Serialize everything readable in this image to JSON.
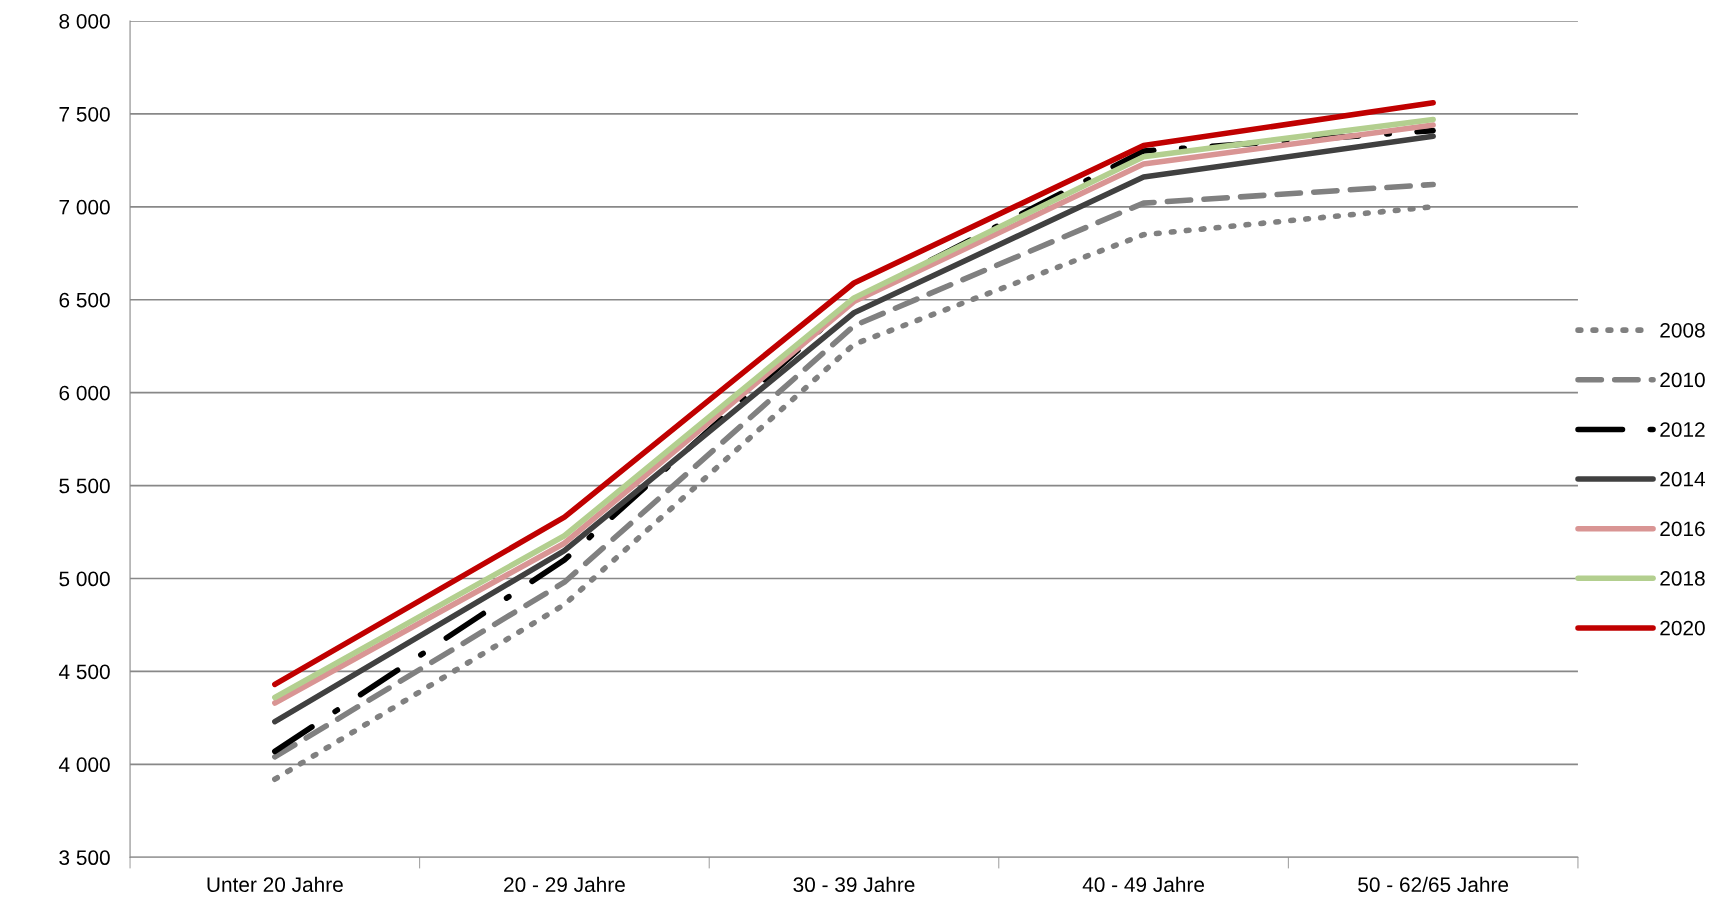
{
  "chart_data": {
    "type": "line",
    "categories": [
      "Unter 20 Jahre",
      "20 - 29 Jahre",
      "30 - 39 Jahre",
      "40 - 49 Jahre",
      "50 - 62/65 Jahre"
    ],
    "series": [
      {
        "name": "2008",
        "color": "#808080",
        "line_style": "dotted",
        "values": [
          3920,
          4860,
          6260,
          6850,
          7000
        ]
      },
      {
        "name": "2010",
        "color": "#808080",
        "line_style": "dashed",
        "values": [
          4040,
          4980,
          6360,
          7020,
          7120
        ]
      },
      {
        "name": "2012",
        "color": "#000000",
        "line_style": "dashdot",
        "values": [
          4070,
          5100,
          6500,
          7300,
          7410
        ]
      },
      {
        "name": "2014",
        "color": "#404040",
        "line_style": "solid",
        "values": [
          4230,
          5150,
          6430,
          7160,
          7380
        ]
      },
      {
        "name": "2016",
        "color": "#d99594",
        "line_style": "solid",
        "values": [
          4330,
          5190,
          6490,
          7230,
          7440
        ]
      },
      {
        "name": "2018",
        "color": "#b3cf8f",
        "line_style": "solid",
        "values": [
          4360,
          5230,
          6510,
          7270,
          7470
        ]
      },
      {
        "name": "2020",
        "color": "#c00000",
        "line_style": "solid",
        "values": [
          4430,
          5330,
          6590,
          7330,
          7560
        ]
      }
    ],
    "ylim": [
      3500,
      8000
    ],
    "yticks": [
      {
        "value": 3500,
        "label": "3 500"
      },
      {
        "value": 4000,
        "label": "4 000"
      },
      {
        "value": 4500,
        "label": "4 500"
      },
      {
        "value": 5000,
        "label": "5 000"
      },
      {
        "value": 5500,
        "label": "5 500"
      },
      {
        "value": 6000,
        "label": "6 000"
      },
      {
        "value": 6500,
        "label": "6 500"
      },
      {
        "value": 7000,
        "label": "7 000"
      },
      {
        "value": 7500,
        "label": "7 500"
      },
      {
        "value": 8000,
        "label": "8 000"
      }
    ],
    "grid": "y",
    "legend": "right",
    "marker": "none"
  }
}
